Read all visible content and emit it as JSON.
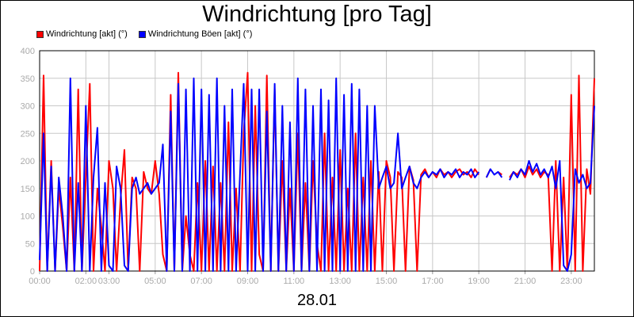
{
  "chart_data": {
    "type": "line",
    "title": "Windrichtung [pro Tag]",
    "xlabel": "28.01",
    "ylabel": "",
    "ylim": [
      0,
      400
    ],
    "yticks": [
      0,
      50,
      100,
      150,
      200,
      250,
      300,
      350,
      400
    ],
    "xlim": [
      "00:00",
      "24:00"
    ],
    "xticks": [
      {
        "label": "00:00",
        "hour": 0
      },
      {
        "label": "02:00",
        "hour": 2
      },
      {
        "label": "03:00",
        "hour": 3
      },
      {
        "label": "05:00",
        "hour": 5
      },
      {
        "label": "07:00",
        "hour": 7
      },
      {
        "label": "09:00",
        "hour": 9
      },
      {
        "label": "11:00",
        "hour": 11
      },
      {
        "label": "13:00",
        "hour": 13
      },
      {
        "label": "15:00",
        "hour": 15
      },
      {
        "label": "17:00",
        "hour": 17
      },
      {
        "label": "19:00",
        "hour": 19
      },
      {
        "label": "21:00",
        "hour": 21
      },
      {
        "label": "23:00",
        "hour": 23
      }
    ],
    "grid": true,
    "legend_position": "top-left",
    "series": [
      {
        "name": "Windrichtung [akt] (°)",
        "color": "#ff0000",
        "points": [
          [
            0,
            0
          ],
          [
            0.17,
            355
          ],
          [
            0.33,
            0
          ],
          [
            0.5,
            200
          ],
          [
            0.67,
            0
          ],
          [
            0.83,
            150
          ],
          [
            1,
            80
          ],
          [
            1.17,
            0
          ],
          [
            1.33,
            170
          ],
          [
            1.5,
            0
          ],
          [
            1.67,
            330
          ],
          [
            1.83,
            0
          ],
          [
            2,
            170
          ],
          [
            2.17,
            340
          ],
          [
            2.33,
            0
          ],
          [
            2.5,
            150
          ],
          [
            2.67,
            80
          ],
          [
            2.83,
            0
          ],
          [
            3,
            200
          ],
          [
            3.17,
            150
          ],
          [
            3.33,
            0
          ],
          [
            3.5,
            130
          ],
          [
            3.67,
            220
          ],
          [
            3.83,
            0
          ],
          [
            4,
            170
          ],
          [
            4.17,
            150
          ],
          [
            4.33,
            0
          ],
          [
            4.5,
            180
          ],
          [
            4.67,
            150
          ],
          [
            4.83,
            140
          ],
          [
            5,
            200
          ],
          [
            5.17,
            140
          ],
          [
            5.33,
            30
          ],
          [
            5.5,
            0
          ],
          [
            5.67,
            320
          ],
          [
            5.83,
            0
          ],
          [
            6,
            360
          ],
          [
            6.17,
            0
          ],
          [
            6.33,
            100
          ],
          [
            6.5,
            30
          ],
          [
            6.67,
            0
          ],
          [
            6.83,
            160
          ],
          [
            7,
            0
          ],
          [
            7.17,
            200
          ],
          [
            7.33,
            0
          ],
          [
            7.5,
            190
          ],
          [
            7.67,
            0
          ],
          [
            7.83,
            160
          ],
          [
            8,
            0
          ],
          [
            8.17,
            270
          ],
          [
            8.33,
            0
          ],
          [
            8.5,
            150
          ],
          [
            8.67,
            0
          ],
          [
            8.83,
            250
          ],
          [
            9,
            360
          ],
          [
            9.17,
            0
          ],
          [
            9.33,
            300
          ],
          [
            9.5,
            30
          ],
          [
            9.67,
            0
          ],
          [
            9.83,
            355
          ],
          [
            10,
            0
          ],
          [
            10.17,
            330
          ],
          [
            10.33,
            0
          ],
          [
            10.5,
            200
          ],
          [
            10.67,
            0
          ],
          [
            10.83,
            150
          ],
          [
            11,
            0
          ],
          [
            11.17,
            250
          ],
          [
            11.33,
            0
          ],
          [
            11.5,
            160
          ],
          [
            11.67,
            0
          ],
          [
            11.83,
            200
          ],
          [
            12,
            50
          ],
          [
            12.17,
            0
          ],
          [
            12.33,
            250
          ],
          [
            12.5,
            0
          ],
          [
            12.67,
            170
          ],
          [
            12.83,
            0
          ],
          [
            13,
            220
          ],
          [
            13.17,
            0
          ],
          [
            13.33,
            150
          ],
          [
            13.5,
            0
          ],
          [
            13.67,
            250
          ],
          [
            13.83,
            0
          ],
          [
            14,
            170
          ],
          [
            14.17,
            0
          ],
          [
            14.33,
            200
          ],
          [
            14.5,
            0
          ],
          [
            14.67,
            180
          ],
          [
            14.83,
            0
          ],
          [
            15,
            200
          ],
          [
            15.17,
            170
          ],
          [
            15.33,
            0
          ],
          [
            15.5,
            180
          ],
          [
            15.67,
            170
          ],
          [
            15.83,
            0
          ],
          [
            16,
            190
          ],
          [
            16.17,
            165
          ],
          [
            16.33,
            0
          ],
          [
            16.5,
            175
          ],
          [
            16.67,
            185
          ],
          [
            16.83,
            170
          ],
          [
            17,
            180
          ],
          [
            17.17,
            170
          ],
          [
            17.33,
            185
          ],
          [
            17.5,
            175
          ],
          [
            17.67,
            180
          ],
          [
            17.83,
            170
          ],
          [
            18,
            180
          ],
          [
            18.17,
            185
          ],
          [
            18.33,
            175
          ],
          [
            18.5,
            180
          ],
          [
            18.67,
            170
          ],
          [
            18.83,
            185
          ],
          [
            19,
            175
          ],
          [
            19.17,
            null
          ],
          [
            19.33,
            170
          ],
          [
            19.5,
            185
          ],
          [
            19.67,
            null
          ],
          [
            19.83,
            180
          ],
          [
            20,
            175
          ],
          [
            20.17,
            null
          ],
          [
            20.33,
            170
          ],
          [
            20.5,
            180
          ],
          [
            20.67,
            175
          ],
          [
            20.83,
            185
          ],
          [
            21,
            170
          ],
          [
            21.17,
            190
          ],
          [
            21.33,
            175
          ],
          [
            21.5,
            185
          ],
          [
            21.67,
            170
          ],
          [
            21.83,
            180
          ],
          [
            22,
            175
          ],
          [
            22.17,
            0
          ],
          [
            22.33,
            200
          ],
          [
            22.5,
            0
          ],
          [
            22.67,
            170
          ],
          [
            22.83,
            0
          ],
          [
            23,
            320
          ],
          [
            23.17,
            0
          ],
          [
            23.33,
            355
          ],
          [
            23.5,
            0
          ],
          [
            23.67,
            185
          ],
          [
            23.83,
            140
          ],
          [
            24,
            350
          ]
        ]
      },
      {
        "name": "Windrichtung Böen [akt] (°)",
        "color": "#0000ff",
        "points": [
          [
            0,
            20
          ],
          [
            0.17,
            250
          ],
          [
            0.33,
            0
          ],
          [
            0.5,
            190
          ],
          [
            0.67,
            0
          ],
          [
            0.83,
            170
          ],
          [
            1,
            100
          ],
          [
            1.17,
            0
          ],
          [
            1.33,
            350
          ],
          [
            1.5,
            0
          ],
          [
            1.67,
            160
          ],
          [
            1.83,
            0
          ],
          [
            2,
            300
          ],
          [
            2.17,
            0
          ],
          [
            2.33,
            170
          ],
          [
            2.5,
            260
          ],
          [
            2.67,
            0
          ],
          [
            2.83,
            160
          ],
          [
            3,
            10
          ],
          [
            3.17,
            0
          ],
          [
            3.33,
            190
          ],
          [
            3.5,
            150
          ],
          [
            3.67,
            10
          ],
          [
            3.83,
            0
          ],
          [
            4,
            150
          ],
          [
            4.17,
            170
          ],
          [
            4.33,
            140
          ],
          [
            4.5,
            150
          ],
          [
            4.67,
            160
          ],
          [
            4.83,
            140
          ],
          [
            5,
            150
          ],
          [
            5.17,
            160
          ],
          [
            5.33,
            230
          ],
          [
            5.5,
            0
          ],
          [
            5.67,
            290
          ],
          [
            5.83,
            0
          ],
          [
            6,
            340
          ],
          [
            6.17,
            0
          ],
          [
            6.33,
            330
          ],
          [
            6.5,
            0
          ],
          [
            6.67,
            350
          ],
          [
            6.83,
            0
          ],
          [
            7,
            330
          ],
          [
            7.17,
            0
          ],
          [
            7.33,
            320
          ],
          [
            7.5,
            0
          ],
          [
            7.67,
            350
          ],
          [
            7.83,
            0
          ],
          [
            8,
            300
          ],
          [
            8.17,
            0
          ],
          [
            8.33,
            330
          ],
          [
            8.5,
            0
          ],
          [
            8.83,
            340
          ],
          [
            9,
            0
          ],
          [
            9.17,
            330
          ],
          [
            9.33,
            0
          ],
          [
            9.5,
            330
          ],
          [
            9.67,
            0
          ],
          [
            9.83,
            290
          ],
          [
            10,
            0
          ],
          [
            10.17,
            340
          ],
          [
            10.33,
            0
          ],
          [
            10.5,
            300
          ],
          [
            10.67,
            0
          ],
          [
            10.83,
            270
          ],
          [
            11,
            0
          ],
          [
            11.17,
            350
          ],
          [
            11.33,
            0
          ],
          [
            11.5,
            330
          ],
          [
            11.67,
            0
          ],
          [
            11.83,
            300
          ],
          [
            12,
            0
          ],
          [
            12.17,
            330
          ],
          [
            12.33,
            0
          ],
          [
            12.5,
            310
          ],
          [
            12.67,
            0
          ],
          [
            12.83,
            350
          ],
          [
            13,
            0
          ],
          [
            13.17,
            320
          ],
          [
            13.33,
            0
          ],
          [
            13.5,
            340
          ],
          [
            13.67,
            0
          ],
          [
            13.83,
            330
          ],
          [
            14,
            0
          ],
          [
            14.17,
            300
          ],
          [
            14.33,
            0
          ],
          [
            14.5,
            300
          ],
          [
            14.67,
            150
          ],
          [
            14.83,
            170
          ],
          [
            15,
            190
          ],
          [
            15.17,
            150
          ],
          [
            15.33,
            160
          ],
          [
            15.5,
            250
          ],
          [
            15.67,
            150
          ],
          [
            15.83,
            170
          ],
          [
            16,
            190
          ],
          [
            16.17,
            160
          ],
          [
            16.33,
            150
          ],
          [
            16.5,
            170
          ],
          [
            16.67,
            180
          ],
          [
            16.83,
            170
          ],
          [
            17,
            180
          ],
          [
            17.17,
            175
          ],
          [
            17.33,
            185
          ],
          [
            17.5,
            170
          ],
          [
            17.67,
            180
          ],
          [
            17.83,
            175
          ],
          [
            18,
            185
          ],
          [
            18.17,
            170
          ],
          [
            18.33,
            180
          ],
          [
            18.5,
            175
          ],
          [
            18.67,
            185
          ],
          [
            18.83,
            170
          ],
          [
            19,
            180
          ],
          [
            19.17,
            null
          ],
          [
            19.33,
            170
          ],
          [
            19.5,
            185
          ],
          [
            19.67,
            175
          ],
          [
            19.83,
            180
          ],
          [
            20,
            170
          ],
          [
            20.17,
            null
          ],
          [
            20.33,
            165
          ],
          [
            20.5,
            180
          ],
          [
            20.67,
            170
          ],
          [
            20.83,
            185
          ],
          [
            21,
            175
          ],
          [
            21.17,
            200
          ],
          [
            21.33,
            180
          ],
          [
            21.5,
            195
          ],
          [
            21.67,
            175
          ],
          [
            21.83,
            185
          ],
          [
            22,
            170
          ],
          [
            22.17,
            190
          ],
          [
            22.33,
            150
          ],
          [
            22.5,
            200
          ],
          [
            22.67,
            10
          ],
          [
            22.83,
            0
          ],
          [
            23,
            30
          ],
          [
            23.17,
            185
          ],
          [
            23.33,
            160
          ],
          [
            23.5,
            175
          ],
          [
            23.67,
            150
          ],
          [
            23.83,
            160
          ],
          [
            24,
            300
          ]
        ]
      }
    ]
  }
}
